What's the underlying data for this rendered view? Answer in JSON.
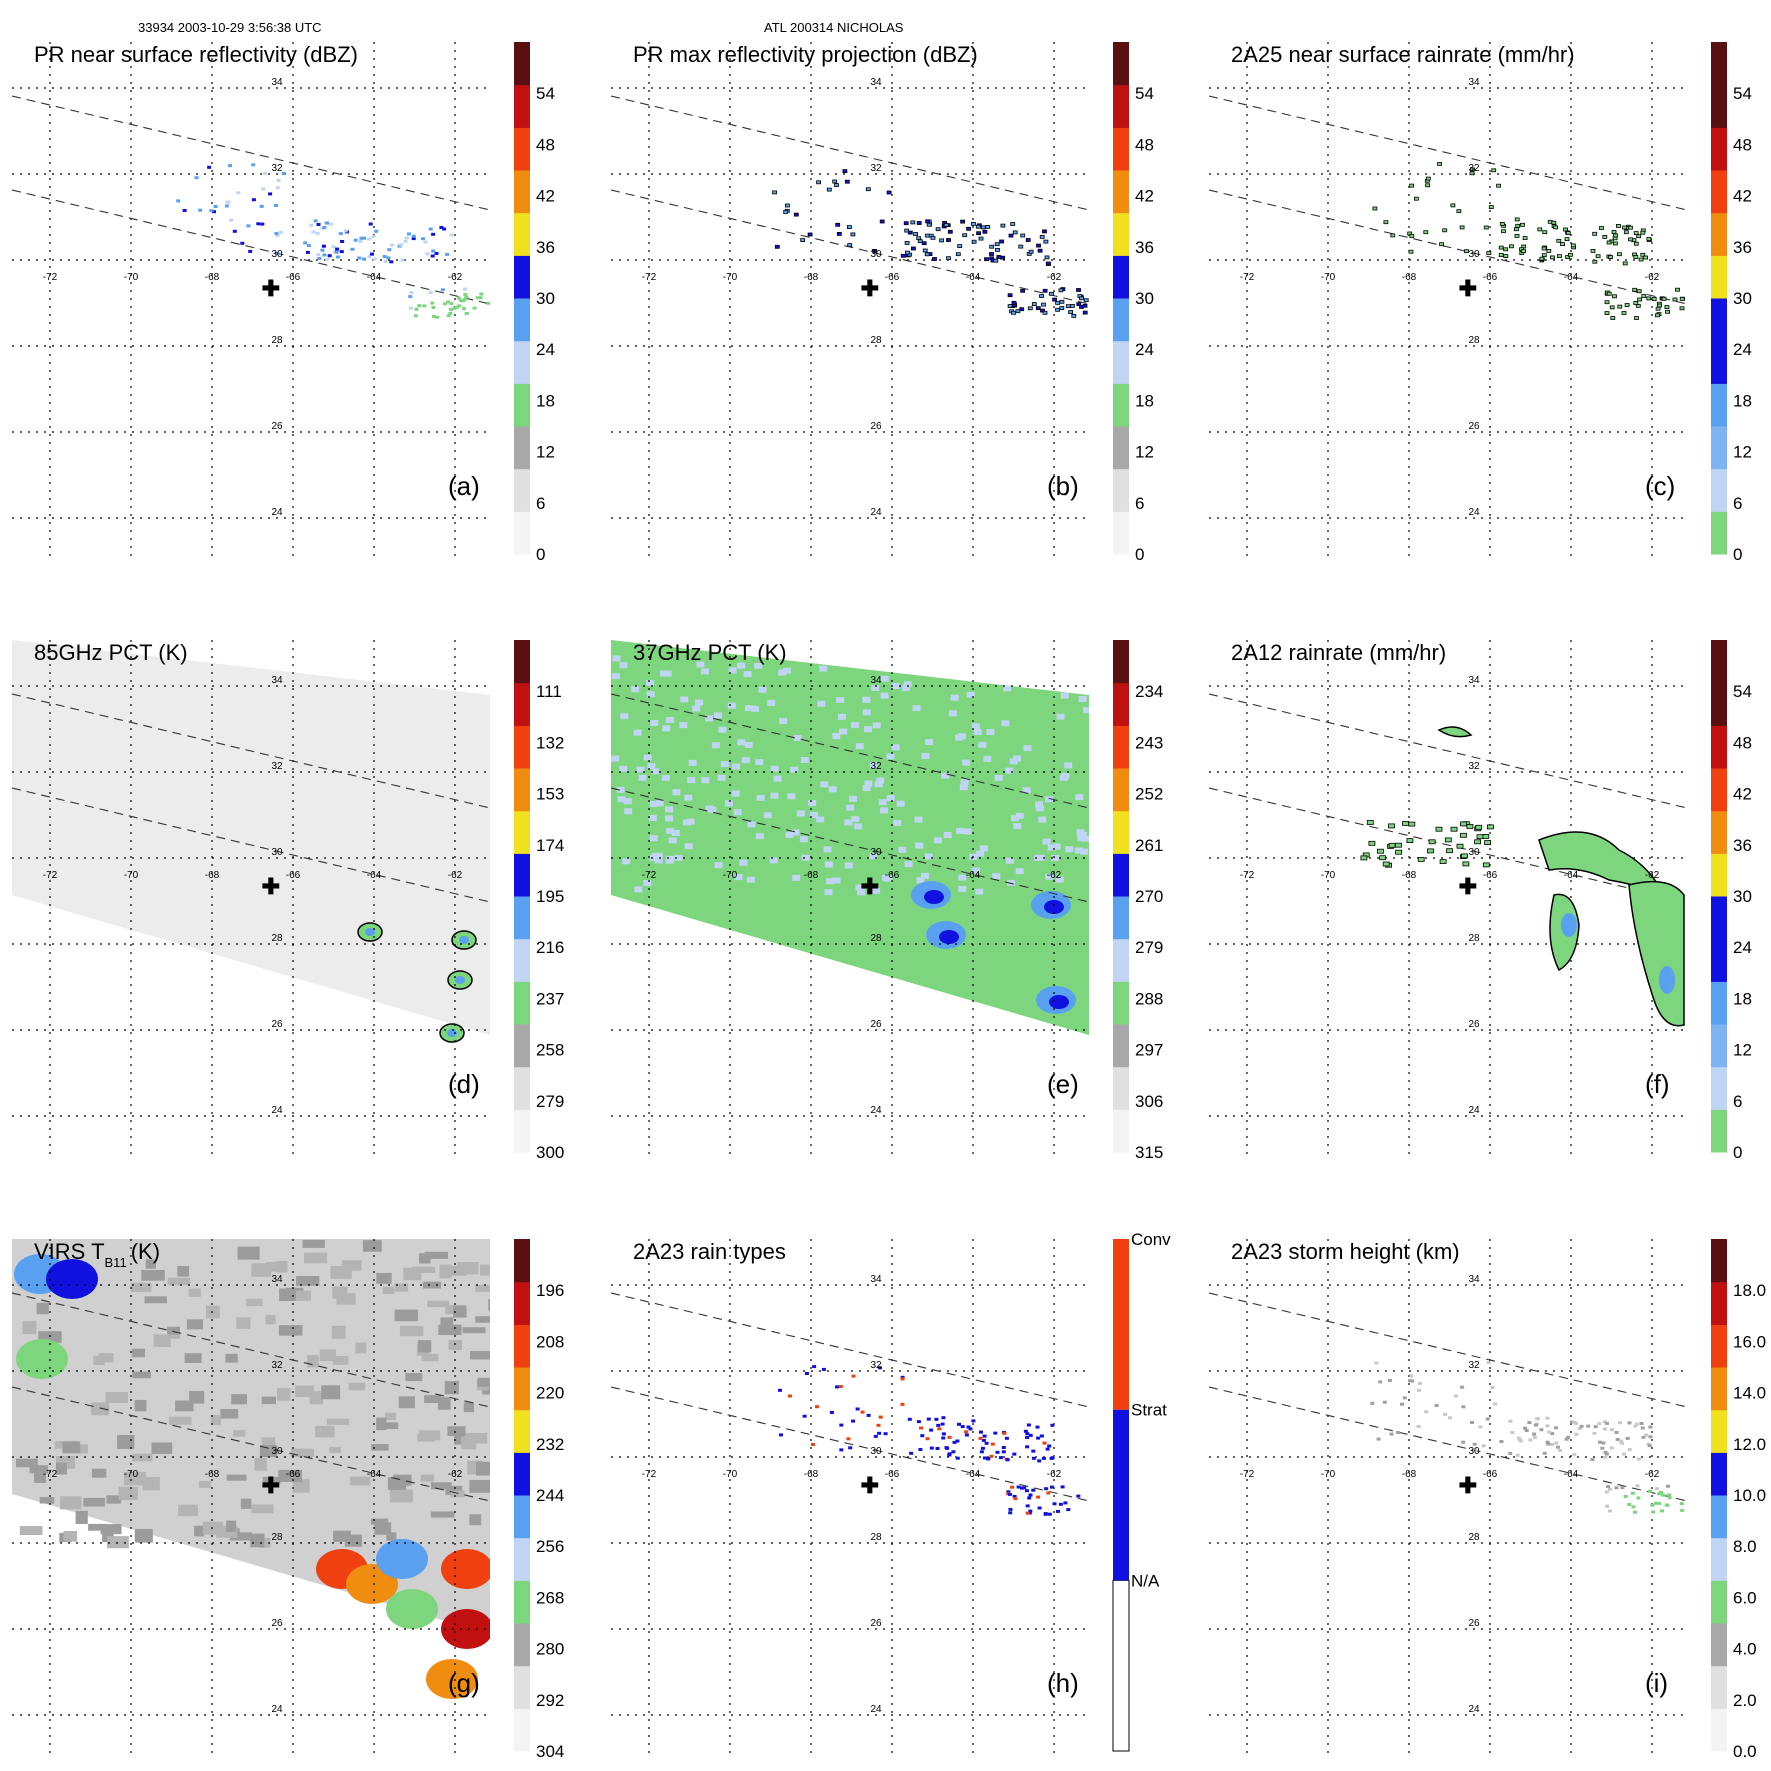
{
  "header": {
    "left": "33934 2003-10-29 3:56:38 UTC",
    "center": "ATL 200314 NICHOLAS"
  },
  "lon_ticks": [
    "-72",
    "-70",
    "-68",
    "-66",
    "-64",
    "-62"
  ],
  "lat_ticks": [
    "34",
    "32",
    "30",
    "28",
    "26",
    "24"
  ],
  "chart_data": [
    {
      "id": "a",
      "type": "heatmap",
      "title": "PR near surface reflectivity (dBZ)",
      "panel_label": "(a)",
      "colorbar": [
        "0",
        "6",
        "12",
        "18",
        "24",
        "30",
        "36",
        "42",
        "48",
        "54"
      ],
      "swath": "pr",
      "blobs": "pr",
      "palette": "refl",
      "contour": false
    },
    {
      "id": "b",
      "type": "heatmap",
      "title": "PR max reflectivity projection (dBZ)",
      "panel_label": "(b)",
      "colorbar": [
        "0",
        "6",
        "12",
        "18",
        "24",
        "30",
        "36",
        "42",
        "48",
        "54"
      ],
      "swath": "pr",
      "blobs": "pr",
      "palette": "refl",
      "contour": true
    },
    {
      "id": "c",
      "type": "heatmap",
      "title": "2A25 near surface rainrate (mm/hr)",
      "panel_label": "(c)",
      "colorbar": [
        "0",
        "6",
        "12",
        "18",
        "24",
        "30",
        "36",
        "42",
        "48",
        "54"
      ],
      "swath": "pr",
      "blobs": "pr",
      "palette": "rain",
      "contour": true
    },
    {
      "id": "d",
      "type": "heatmap",
      "title": "85GHz PCT (K)",
      "panel_label": "(d)",
      "colorbar": [
        "300",
        "279",
        "258",
        "237",
        "216",
        "195",
        "174",
        "153",
        "132",
        "111"
      ],
      "swath": "wide",
      "blobs": "pct85",
      "palette": "gray",
      "contour": true
    },
    {
      "id": "e",
      "type": "heatmap",
      "title": "37GHz PCT (K)",
      "panel_label": "(e)",
      "colorbar": [
        "315",
        "306",
        "297",
        "288",
        "279",
        "270",
        "261",
        "252",
        "243",
        "234"
      ],
      "swath": "wide",
      "blobs": "pct37",
      "palette": "green",
      "contour": false
    },
    {
      "id": "f",
      "type": "heatmap",
      "title": "2A12 rainrate (mm/hr)",
      "panel_label": "(f)",
      "colorbar": [
        "0",
        "6",
        "12",
        "18",
        "24",
        "30",
        "36",
        "42",
        "48",
        "54"
      ],
      "swath": "none",
      "blobs": "tmi",
      "palette": "rain",
      "contour": true
    },
    {
      "id": "g",
      "type": "heatmap",
      "title": "VIRS T",
      "title_sub": "B11",
      "title_unit": "(K)",
      "panel_label": "(g)",
      "colorbar": [
        "304",
        "292",
        "280",
        "268",
        "256",
        "244",
        "232",
        "220",
        "208",
        "196"
      ],
      "swath": "wide",
      "blobs": "virs",
      "palette": "virs",
      "contour": true
    },
    {
      "id": "h",
      "type": "heatmap",
      "title": "2A23 rain types",
      "panel_label": "(h)",
      "colorbar_categories": [
        "N/A",
        "Strat",
        "Conv"
      ],
      "swath": "pr",
      "blobs": "pr",
      "palette": "type",
      "contour": false
    },
    {
      "id": "i",
      "type": "heatmap",
      "title": "2A23 storm height (km)",
      "panel_label": "(i)",
      "colorbar": [
        "0.0",
        "2.0",
        "4.0",
        "6.0",
        "8.0",
        "10.0",
        "12.0",
        "14.0",
        "16.0",
        "18.0"
      ],
      "swath": "pr",
      "blobs": "pr",
      "palette": "height",
      "contour": false
    }
  ]
}
